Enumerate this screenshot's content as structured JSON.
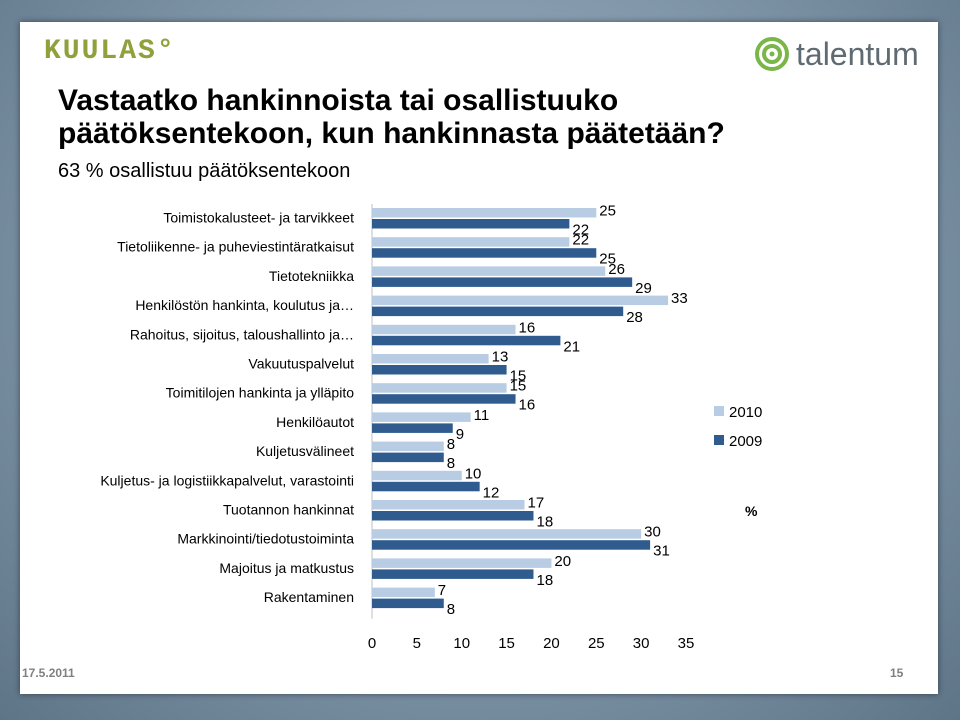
{
  "header": {
    "left_logo_text": "KUULAS°",
    "right_logo_text": "talentum",
    "title": "Vastaatko hankinnoista tai osallistuuko päätöksentekoon, kun hankinnasta päätetään?",
    "subtitle": "63 % osallistuu päätöksentekoon"
  },
  "footer": {
    "date": "17.5.2011",
    "page": "15"
  },
  "colors": {
    "series_2010": "#b8cce4",
    "series_2009": "#2f5b8e",
    "kuulas_green": "#8fa13a",
    "talentum_green": "#7ab648"
  },
  "chart_data": {
    "type": "bar",
    "orientation": "horizontal",
    "categories": [
      "Toimistokalusteet- ja tarvikkeet",
      "Tietoliikenne- ja puheviestintäratkaisut",
      "Tietotekniikka",
      "Henkilöstön hankinta, koulutus ja…",
      "Rahoitus, sijoitus, taloushallinto ja…",
      "Vakuutuspalvelut",
      "Toimitilojen hankinta ja ylläpito",
      "Henkilöautot",
      "Kuljetusvälineet",
      "Kuljetus- ja logistiikkapalvelut, varastointi",
      "Tuotannon hankinnat",
      "Markkinointi/tiedotustoiminta",
      "Majoitus ja matkustus",
      "Rakentaminen"
    ],
    "series": [
      {
        "name": "2010",
        "values": [
          25,
          22,
          26,
          33,
          16,
          13,
          15,
          11,
          8,
          10,
          17,
          30,
          20,
          7
        ]
      },
      {
        "name": "2009",
        "values": [
          22,
          25,
          29,
          28,
          21,
          15,
          16,
          9,
          8,
          12,
          18,
          31,
          18,
          8
        ]
      }
    ],
    "xlim": [
      0,
      35
    ],
    "xticks": [
      "0",
      "5",
      "10",
      "15",
      "20",
      "25",
      "30",
      "35"
    ],
    "xlabel": "",
    "unit_label": "%",
    "legend_position": "right",
    "grid": false
  }
}
